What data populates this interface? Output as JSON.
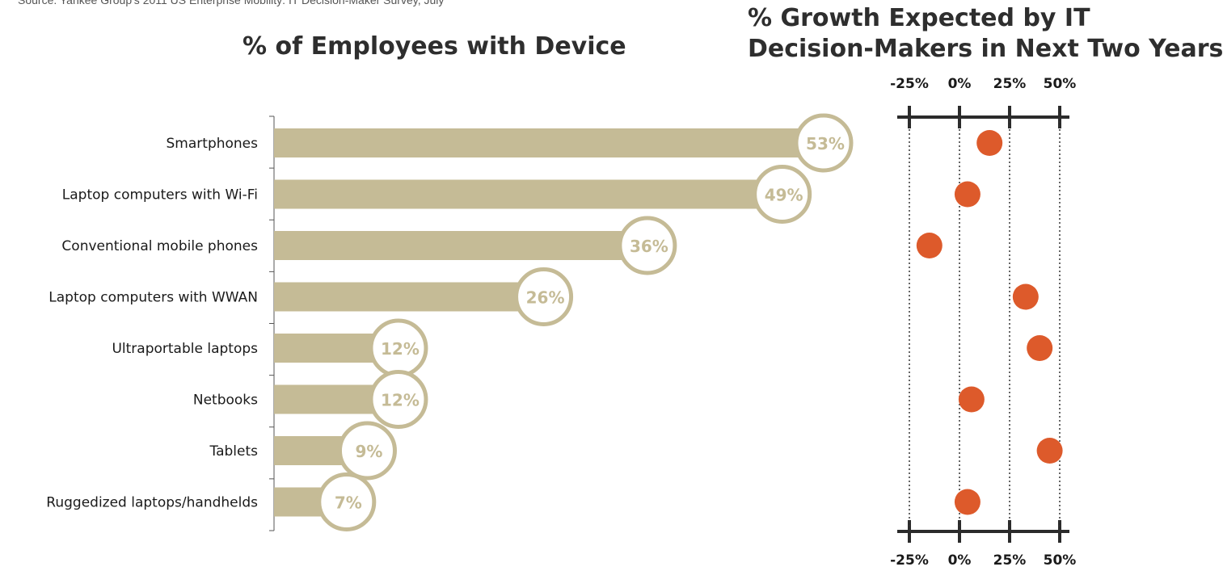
{
  "source_note": "Source: Yankee Group's 2011 US Enterprise Mobility: IT Decision-Maker Survey, July",
  "colors": {
    "bar": "#c5bb96",
    "dot": "#dd5a2b",
    "axis": "#2b2b2b"
  },
  "chart_data": [
    {
      "type": "bar",
      "title": "% of Employees with Device",
      "categories": [
        "Smartphones",
        "Laptop computers with Wi-Fi",
        "Conventional mobile phones",
        "Laptop computers with WWAN",
        "Ultraportable laptops",
        "Netbooks",
        "Tablets",
        "Ruggedized laptops/handhelds"
      ],
      "values": [
        53,
        49,
        36,
        26,
        12,
        12,
        9,
        7
      ],
      "value_labels": [
        "53%",
        "49%",
        "36%",
        "26%",
        "12%",
        "12%",
        "9%",
        "7%"
      ],
      "orientation": "horizontal",
      "xlim": [
        0,
        55
      ],
      "grid": false
    },
    {
      "type": "scatter",
      "title_lines": [
        "% Growth Expected by IT",
        "Decision-Makers in Next Two Years"
      ],
      "categories": [
        "Smartphones",
        "Laptop computers with Wi-Fi",
        "Conventional mobile phones",
        "Laptop computers with WWAN",
        "Ultraportable laptops",
        "Netbooks",
        "Tablets",
        "Ruggedized laptops/handhelds"
      ],
      "values": [
        15,
        4,
        -15,
        33,
        40,
        6,
        45,
        4
      ],
      "xlim": [
        -25,
        50
      ],
      "ticks": [
        -25,
        0,
        25,
        50
      ],
      "tick_labels": [
        "-25%",
        "0%",
        "25%",
        "50%"
      ],
      "grid": "dotted vertical"
    }
  ]
}
